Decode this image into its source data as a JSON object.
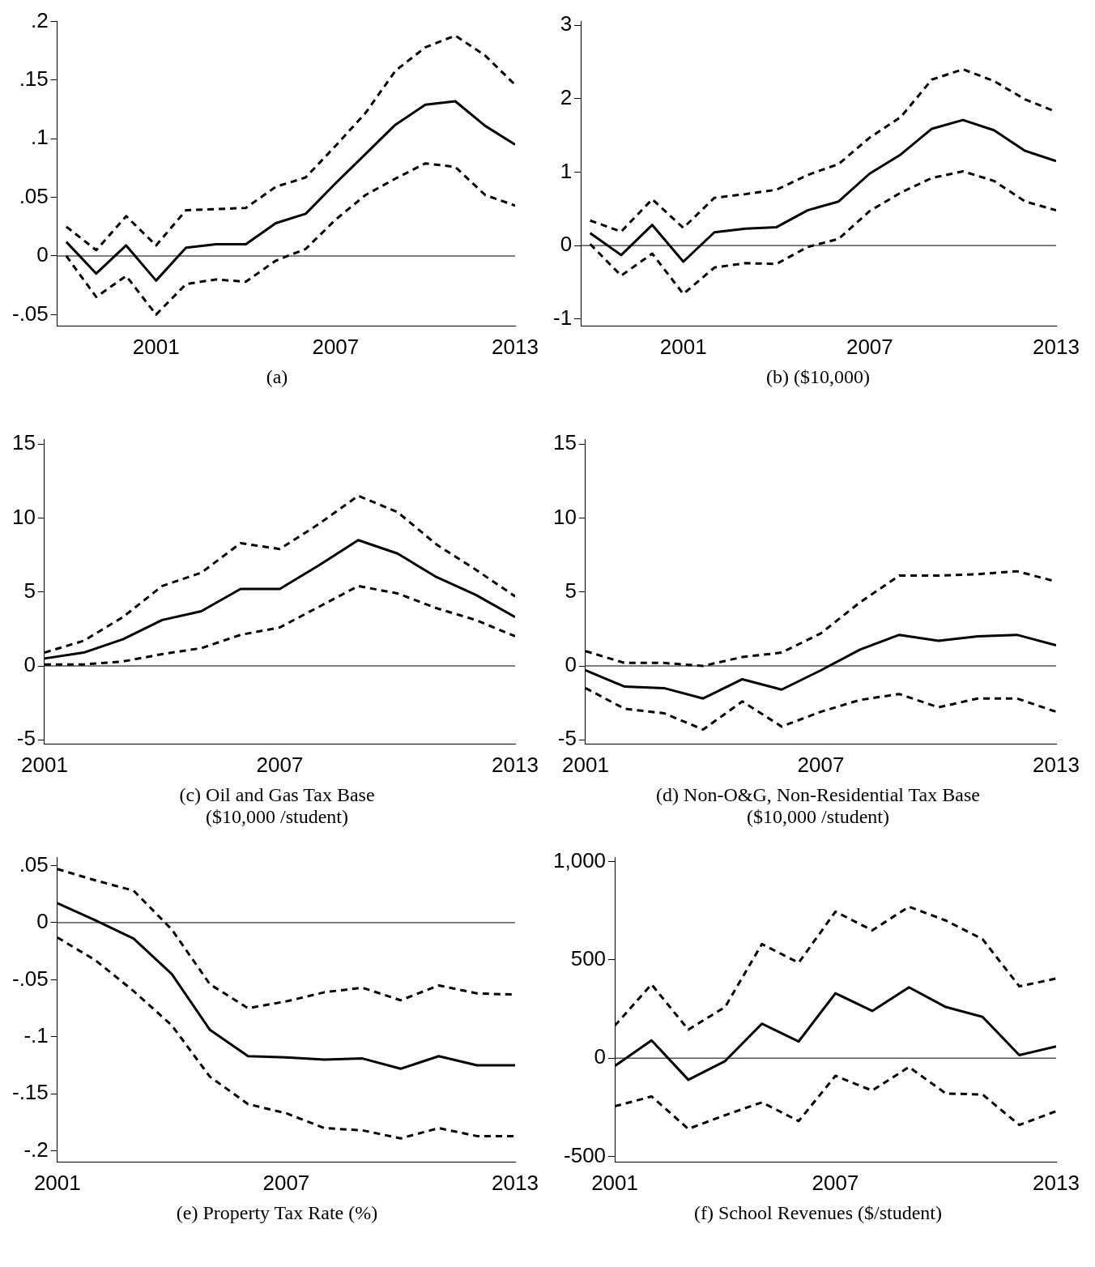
{
  "chart_data": [
    {
      "type": "line",
      "title": "(a)",
      "x": [
        1998,
        1999,
        2000,
        2001,
        2002,
        2003,
        2004,
        2005,
        2006,
        2007,
        2008,
        2009,
        2010,
        2011,
        2012,
        2013
      ],
      "xlim": [
        1997.7,
        2013
      ],
      "xticks": [
        2001,
        2007,
        2013
      ],
      "ylim": [
        -0.06,
        0.2
      ],
      "yticks": [
        {
          "value": -0.05,
          "label": "-.05"
        },
        0,
        {
          "value": 0.05,
          "label": ".05"
        },
        {
          "value": 0.1,
          "label": ".1"
        },
        {
          "value": 0.15,
          "label": ".15"
        },
        {
          "value": 0.2,
          "label": ".2"
        }
      ],
      "grid": false,
      "legend": false,
      "ref_lines": [
        {
          "axis": "y",
          "value": 0
        }
      ],
      "series": [
        {
          "color": "#000000",
          "line_style": "solid",
          "values": [
            0.012,
            -0.015,
            0.009,
            -0.021,
            0.007,
            0.01,
            0.01,
            0.028,
            0.036,
            0.062,
            0.087,
            0.112,
            0.129,
            0.132,
            0.111,
            0.095
          ]
        },
        {
          "color": "#000000",
          "line_style": "dashed",
          "values": [
            0.025,
            0.005,
            0.034,
            0.009,
            0.039,
            0.04,
            0.041,
            0.059,
            0.067,
            0.094,
            0.122,
            0.158,
            0.178,
            0.188,
            0.171,
            0.146
          ]
        },
        {
          "color": "#000000",
          "line_style": "dashed",
          "values": [
            0.0,
            -0.035,
            -0.017,
            -0.05,
            -0.024,
            -0.02,
            -0.022,
            -0.004,
            0.006,
            0.031,
            0.052,
            0.066,
            0.079,
            0.076,
            0.052,
            0.043
          ]
        }
      ]
    },
    {
      "type": "line",
      "title": "(b) ($10,000)",
      "x": [
        1998,
        1999,
        2000,
        2001,
        2002,
        2003,
        2004,
        2005,
        2006,
        2007,
        2008,
        2009,
        2010,
        2011,
        2012,
        2013
      ],
      "xlim": [
        1997.7,
        2013
      ],
      "xticks": [
        2001,
        2007,
        2013
      ],
      "ylim": [
        -1.1,
        3.05
      ],
      "yticks": [
        -1,
        0,
        1,
        2,
        3
      ],
      "grid": false,
      "legend": false,
      "ref_lines": [
        {
          "axis": "y",
          "value": 0
        }
      ],
      "series": [
        {
          "color": "#000000",
          "line_style": "solid",
          "values": [
            0.17,
            -0.13,
            0.28,
            -0.22,
            0.18,
            0.23,
            0.25,
            0.48,
            0.6,
            0.98,
            1.24,
            1.59,
            1.71,
            1.57,
            1.29,
            1.15
          ]
        },
        {
          "color": "#000000",
          "line_style": "dashed",
          "values": [
            0.34,
            0.19,
            0.63,
            0.24,
            0.65,
            0.7,
            0.76,
            0.96,
            1.11,
            1.47,
            1.75,
            2.26,
            2.4,
            2.24,
            1.99,
            1.82
          ]
        },
        {
          "color": "#000000",
          "line_style": "dashed",
          "values": [
            0.02,
            -0.41,
            -0.11,
            -0.66,
            -0.3,
            -0.24,
            -0.25,
            -0.02,
            0.09,
            0.47,
            0.72,
            0.92,
            1.01,
            0.88,
            0.6,
            0.48
          ]
        }
      ]
    },
    {
      "type": "line",
      "title": "(c) Oil and Gas Tax Base\n($10,000 /student)",
      "x": [
        2001,
        2002,
        2003,
        2004,
        2005,
        2006,
        2007,
        2008,
        2009,
        2010,
        2011,
        2012,
        2013
      ],
      "xlim": [
        2001,
        2013
      ],
      "xticks": [
        2001,
        2007,
        2013
      ],
      "ylim": [
        -5.3,
        15.3
      ],
      "yticks": [
        -5,
        0,
        5,
        10,
        15
      ],
      "grid": false,
      "legend": false,
      "ref_lines": [
        {
          "axis": "y",
          "value": 0
        }
      ],
      "series": [
        {
          "color": "#000000",
          "line_style": "solid",
          "values": [
            0.5,
            0.9,
            1.8,
            3.1,
            3.7,
            5.2,
            5.2,
            6.8,
            8.5,
            7.6,
            6.0,
            4.8,
            3.3
          ]
        },
        {
          "color": "#000000",
          "line_style": "dashed",
          "values": [
            0.9,
            1.7,
            3.3,
            5.4,
            6.3,
            8.3,
            7.9,
            9.6,
            11.5,
            10.4,
            8.2,
            6.5,
            4.7
          ]
        },
        {
          "color": "#000000",
          "line_style": "dashed",
          "values": [
            0.1,
            0.1,
            0.3,
            0.8,
            1.2,
            2.1,
            2.6,
            4.0,
            5.4,
            4.9,
            3.9,
            3.1,
            2.0
          ]
        }
      ]
    },
    {
      "type": "line",
      "title": "(d) Non-O&G, Non-Residential Tax Base\n($10,000 /student)",
      "x": [
        2001,
        2002,
        2003,
        2004,
        2005,
        2006,
        2007,
        2008,
        2009,
        2010,
        2011,
        2012,
        2013
      ],
      "xlim": [
        2001,
        2013
      ],
      "xticks": [
        2001,
        2007,
        2013
      ],
      "ylim": [
        -5.3,
        15.3
      ],
      "yticks": [
        -5,
        0,
        5,
        10,
        15
      ],
      "grid": false,
      "legend": false,
      "ref_lines": [
        {
          "axis": "y",
          "value": 0
        }
      ],
      "series": [
        {
          "color": "#000000",
          "line_style": "solid",
          "values": [
            -0.3,
            -1.4,
            -1.5,
            -2.2,
            -0.9,
            -1.6,
            -0.3,
            1.1,
            2.1,
            1.7,
            2.0,
            2.1,
            1.4
          ]
        },
        {
          "color": "#000000",
          "line_style": "dashed",
          "values": [
            1.0,
            0.2,
            0.2,
            0.0,
            0.6,
            0.9,
            2.2,
            4.3,
            6.1,
            6.1,
            6.2,
            6.4,
            5.7
          ]
        },
        {
          "color": "#000000",
          "line_style": "dashed",
          "values": [
            -1.5,
            -2.9,
            -3.2,
            -4.3,
            -2.4,
            -4.1,
            -3.1,
            -2.3,
            -1.9,
            -2.8,
            -2.2,
            -2.2,
            -3.1
          ]
        }
      ]
    },
    {
      "type": "line",
      "title": "(e) Property Tax Rate (%)",
      "x": [
        2001,
        2002,
        2003,
        2004,
        2005,
        2006,
        2007,
        2008,
        2009,
        2010,
        2011,
        2012,
        2013
      ],
      "xlim": [
        2001,
        2013
      ],
      "xticks": [
        2001,
        2007,
        2013
      ],
      "ylim": [
        -0.21,
        0.057
      ],
      "yticks": [
        {
          "value": -0.2,
          "label": "-.2"
        },
        {
          "value": -0.15,
          "label": "-.15"
        },
        {
          "value": -0.1,
          "label": "-.1"
        },
        {
          "value": -0.05,
          "label": "-.05"
        },
        0,
        {
          "value": 0.05,
          "label": ".05"
        }
      ],
      "grid": false,
      "legend": false,
      "ref_lines": [
        {
          "axis": "y",
          "value": 0
        }
      ],
      "series": [
        {
          "color": "#000000",
          "line_style": "solid",
          "values": [
            0.017,
            0.002,
            -0.014,
            -0.045,
            -0.094,
            -0.117,
            -0.118,
            -0.12,
            -0.119,
            -0.128,
            -0.117,
            -0.125,
            -0.125
          ]
        },
        {
          "color": "#000000",
          "line_style": "dashed",
          "values": [
            0.047,
            0.037,
            0.028,
            -0.006,
            -0.054,
            -0.075,
            -0.069,
            -0.061,
            -0.057,
            -0.068,
            -0.055,
            -0.062,
            -0.063
          ]
        },
        {
          "color": "#000000",
          "line_style": "dashed",
          "values": [
            -0.013,
            -0.033,
            -0.06,
            -0.09,
            -0.135,
            -0.159,
            -0.167,
            -0.18,
            -0.182,
            -0.189,
            -0.18,
            -0.187,
            -0.187
          ]
        }
      ]
    },
    {
      "type": "line",
      "title": "(f) School Revenues ($/student)",
      "x": [
        2001,
        2002,
        2003,
        2004,
        2005,
        2006,
        2007,
        2008,
        2009,
        2010,
        2011,
        2012,
        2013
      ],
      "xlim": [
        2001,
        2013
      ],
      "xticks": [
        2001,
        2007,
        2013
      ],
      "ylim": [
        -530,
        1020
      ],
      "yticks": [
        -500,
        0,
        500,
        {
          "value": 1000,
          "label": "1,000"
        }
      ],
      "grid": false,
      "legend": false,
      "ref_lines": [
        {
          "axis": "y",
          "value": 0
        }
      ],
      "series": [
        {
          "color": "#000000",
          "line_style": "solid",
          "values": [
            -40,
            90,
            -110,
            -15,
            175,
            85,
            330,
            240,
            360,
            260,
            210,
            15,
            60
          ]
        },
        {
          "color": "#000000",
          "line_style": "dashed",
          "values": [
            165,
            375,
            145,
            260,
            580,
            485,
            745,
            650,
            770,
            700,
            605,
            365,
            405
          ]
        },
        {
          "color": "#000000",
          "line_style": "dashed",
          "values": [
            -245,
            -195,
            -360,
            -290,
            -225,
            -320,
            -90,
            -165,
            -45,
            -180,
            -185,
            -340,
            -270
          ]
        }
      ]
    }
  ]
}
